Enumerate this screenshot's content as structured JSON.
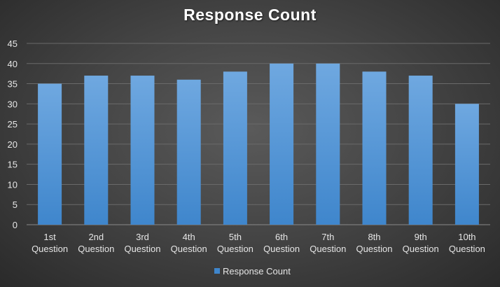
{
  "chart_data": {
    "type": "bar",
    "title": "Response Count",
    "categories": [
      [
        "1st",
        "Question"
      ],
      [
        "2nd",
        "Question"
      ],
      [
        "3rd",
        "Question"
      ],
      [
        "4th",
        "Question"
      ],
      [
        "5th",
        "Question"
      ],
      [
        "6th",
        "Question"
      ],
      [
        "7th",
        "Question"
      ],
      [
        "8th",
        "Question"
      ],
      [
        "9th",
        "Question"
      ],
      [
        "10th",
        "Question"
      ]
    ],
    "series": [
      {
        "name": "Response Count",
        "values": [
          35,
          37,
          37,
          36,
          38,
          40,
          40,
          38,
          37,
          30
        ]
      }
    ],
    "ylim": [
      0,
      45
    ],
    "yticks": [
      0,
      5,
      10,
      15,
      20,
      25,
      30,
      35,
      40,
      45
    ],
    "grid": true,
    "legend": "bottom",
    "colors": {
      "bar_top": "#6fa8e0",
      "bar_bottom": "#3f86cc",
      "grid": "#6a6a6a",
      "axis": "#8a8a8a"
    }
  }
}
